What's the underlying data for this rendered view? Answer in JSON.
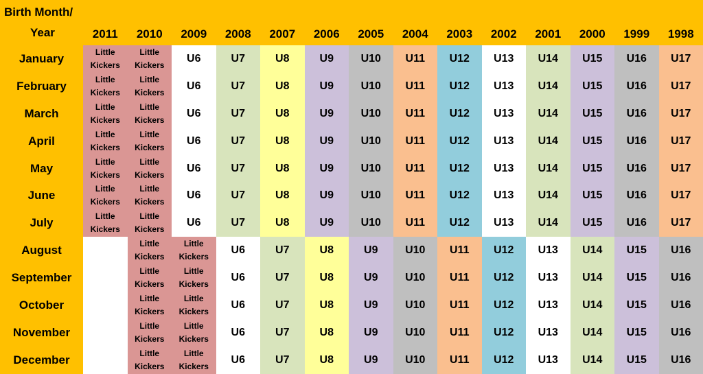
{
  "header": {
    "corner_line1": "Birth Month/",
    "corner_line2": "Year",
    "years": [
      "2011",
      "2010",
      "2009",
      "2008",
      "2007",
      "2006",
      "2005",
      "2004",
      "2003",
      "2002",
      "2001",
      "2000",
      "1999",
      "1998"
    ]
  },
  "months": [
    "January",
    "February",
    "March",
    "April",
    "May",
    "June",
    "July",
    "August",
    "September",
    "October",
    "November",
    "December"
  ],
  "little_kickers": [
    "Little",
    "Kickers"
  ],
  "groups_jan_jul": [
    "LK",
    "LK",
    "U6",
    "U7",
    "U8",
    "U9",
    "U10",
    "U11",
    "U12",
    "U13",
    "U14",
    "U15",
    "U16",
    "U17"
  ],
  "groups_aug_dec": [
    "",
    "LK",
    "LK",
    "U6",
    "U7",
    "U8",
    "U9",
    "U10",
    "U11",
    "U12",
    "U13",
    "U14",
    "U15",
    "U16"
  ],
  "colors": {
    "LK": "#DA9694",
    "U6": "#FFFFFF",
    "U7": "#D8E4BC",
    "U8": "#FFFF99",
    "U9": "#CCC0DA",
    "U10": "#BFBFBF",
    "U11": "#FABF8F",
    "U12": "#92CDDC",
    "U13": "#FFFFFF",
    "U14": "#D8E4BC",
    "U15": "#CCC0DA",
    "U16": "#BFBFBF",
    "U17": "#FABF8F",
    "blank": "#FFFFFF",
    "header": "#FFC000"
  }
}
